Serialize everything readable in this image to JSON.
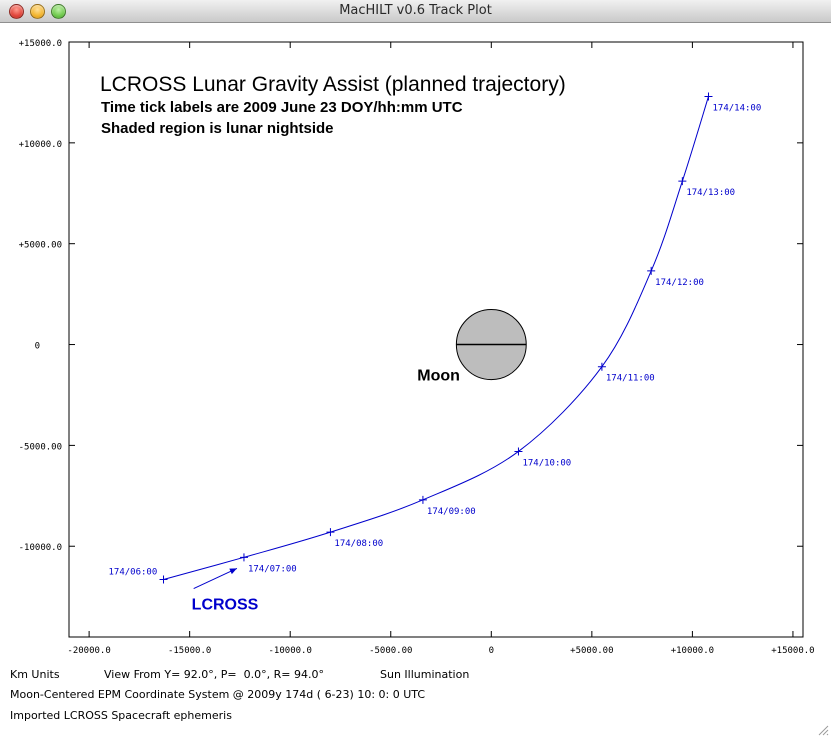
{
  "window": {
    "title": "MacHILT v0.6 Track Plot"
  },
  "chart_data": {
    "type": "line",
    "title": "LCROSS Lunar Gravity Assist (planned trajectory)",
    "subtitle_lines": [
      "Time tick labels are 2009 June 23 DOY/hh:mm UTC",
      "Shaded region is lunar nightside"
    ],
    "xlim": [
      -21000,
      15500
    ],
    "ylim": [
      -14500,
      15000
    ],
    "x_ticks": [
      {
        "value": -20000,
        "label": "-20000.0"
      },
      {
        "value": -15000,
        "label": "-15000.0"
      },
      {
        "value": -10000,
        "label": "-10000.0"
      },
      {
        "value": -5000,
        "label": "-5000.00"
      },
      {
        "value": 0,
        "label": "0"
      },
      {
        "value": 5000,
        "label": "+5000.00"
      },
      {
        "value": 10000,
        "label": "+10000.0"
      },
      {
        "value": 15000,
        "label": "+15000.0"
      }
    ],
    "y_ticks": [
      {
        "value": 15000,
        "label": "+15000.0"
      },
      {
        "value": 10000,
        "label": "+10000.0"
      },
      {
        "value": 5000,
        "label": "+5000.00"
      },
      {
        "value": 0,
        "label": "0"
      },
      {
        "value": -5000,
        "label": "-5000.00"
      },
      {
        "value": -10000,
        "label": "-10000.0"
      }
    ],
    "series": [
      {
        "name": "LCROSS",
        "color": "#0000cc",
        "points": [
          {
            "x": -16300,
            "y": -11650,
            "label": "174/06:00"
          },
          {
            "x": -12300,
            "y": -10550,
            "label": "174/07:00"
          },
          {
            "x": -8000,
            "y": -9300,
            "label": "174/08:00"
          },
          {
            "x": -3400,
            "y": -7700,
            "label": "174/09:00"
          },
          {
            "x": 1350,
            "y": -5300,
            "label": "174/10:00"
          },
          {
            "x": 5500,
            "y": -1100,
            "label": "174/11:00"
          },
          {
            "x": 7950,
            "y": 3650,
            "label": "174/12:00"
          },
          {
            "x": 9500,
            "y": 8100,
            "label": "174/13:00"
          },
          {
            "x": 10800,
            "y": 12300,
            "label": "174/14:00"
          }
        ]
      }
    ],
    "body": {
      "name": "Moon",
      "x": 0,
      "y": 0,
      "radius_km": 1737.4,
      "fill": "#bdbdbd"
    },
    "spacecraft_label": "LCROSS"
  },
  "footer": {
    "line1_units": "Km Units",
    "line1_view": "View From Y= 92.0°, P=  0.0°, R= 94.0°",
    "line1_sun": "Sun Illumination",
    "line2": "Moon-Centered EPM Coordinate System @ 2009y 174d ( 6-23) 10: 0: 0 UTC",
    "line3": "Imported LCROSS Spacecraft ephemeris"
  }
}
